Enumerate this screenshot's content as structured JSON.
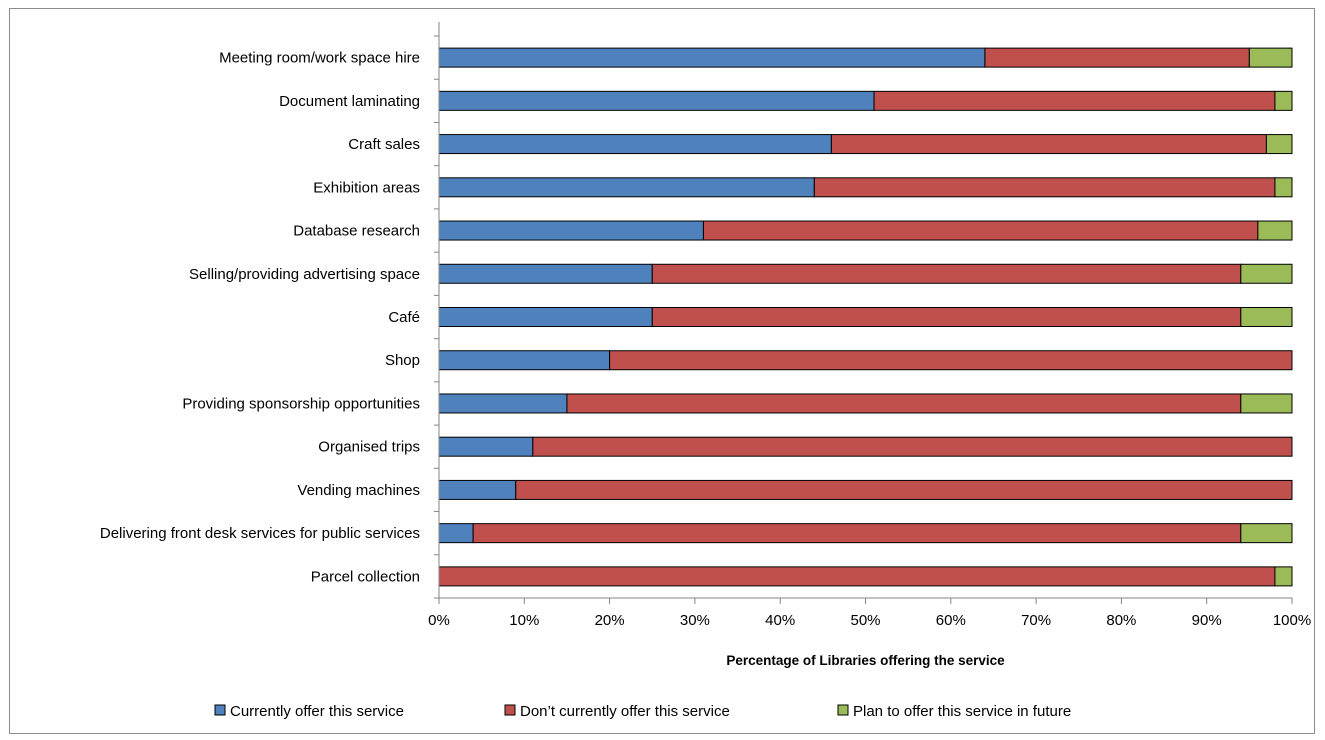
{
  "chart_data": {
    "type": "bar",
    "orientation": "horizontal",
    "stacked": "percent",
    "title": "",
    "xlabel": "Percentage of Libraries offering the service",
    "ylabel": "",
    "xlim": [
      0,
      100
    ],
    "x_ticks": [
      "0%",
      "10%",
      "20%",
      "30%",
      "40%",
      "50%",
      "60%",
      "70%",
      "80%",
      "90%",
      "100%"
    ],
    "grid": false,
    "legend_position": "bottom",
    "categories": [
      "Meeting room/work space hire",
      "Document laminating",
      "Craft sales",
      "Exhibition areas",
      "Database research",
      "Selling/providing advertising space",
      "Café",
      "Shop",
      "Providing sponsorship opportunities",
      "Organised trips",
      "Vending machines",
      "Delivering front desk services for public services",
      "Parcel collection"
    ],
    "series": [
      {
        "name": "Currently offer this service",
        "color": "#4f81bd",
        "values": [
          64,
          51,
          46,
          44,
          31,
          25,
          25,
          20,
          15,
          11,
          9,
          4,
          0
        ]
      },
      {
        "name": "Don’t currently offer this service",
        "color": "#c0504d",
        "values": [
          31,
          47,
          51,
          54,
          65,
          69,
          69,
          80,
          79,
          89,
          91,
          90,
          98
        ]
      },
      {
        "name": "Plan to offer this service in future",
        "color": "#9bbb59",
        "values": [
          5,
          2,
          3,
          2,
          4,
          6,
          6,
          0,
          6,
          0,
          0,
          6,
          2
        ]
      }
    ]
  }
}
